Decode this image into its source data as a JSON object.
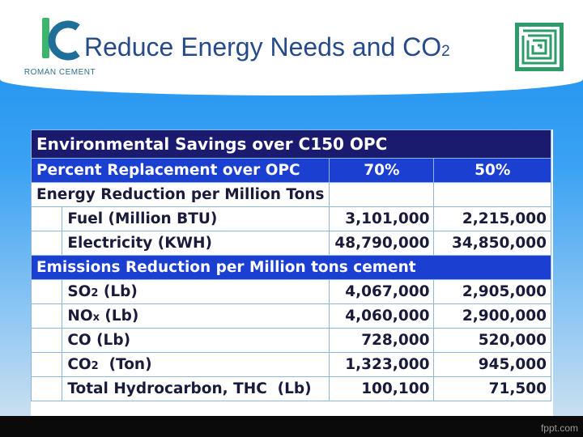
{
  "slide": {
    "title_main": "Reduce Energy Needs and CO",
    "title_sub": "2",
    "logo_text": "ROMAN CEMENT"
  },
  "table": {
    "title": "Environmental Savings over C150 OPC",
    "header": {
      "label": "Percent Replacement over OPC",
      "col1": "70%",
      "col2": "50%"
    },
    "energy_section": "Energy Reduction per Million Tons",
    "energy_rows": [
      {
        "label": "Fuel (Million BTU)",
        "v70": "3,101,000",
        "v50": "2,215,000"
      },
      {
        "label": "Electricity (KWH)",
        "v70": "48,790,000",
        "v50": "34,850,000"
      }
    ],
    "emissions_section": "Emissions Reduction per Million tons cement",
    "emission_rows": [
      {
        "label_a": "SO",
        "label_sub": "2",
        "label_b": " (Lb)",
        "v70": "4,067,000",
        "v50": "2,905,000"
      },
      {
        "label_a": "NO",
        "label_sub": "x",
        "label_b": " (Lb)",
        "v70": "4,060,000",
        "v50": "2,900,000"
      },
      {
        "label_a": "CO (Lb)",
        "label_sub": "",
        "label_b": "",
        "v70": "728,000",
        "v50": "520,000"
      },
      {
        "label_a": "CO",
        "label_sub": "2",
        "label_b": "  (Ton)",
        "v70": "1,323,000",
        "v50": "945,000"
      },
      {
        "label_a": "Total Hydrocarbon, THC  (Lb)",
        "label_sub": "",
        "label_b": "",
        "v70": "100,100",
        "v50": "71,500"
      }
    ]
  },
  "footer": {
    "text": "fppt.com"
  },
  "colors": {
    "accent_dark": "#1a1a6e",
    "accent_blue": "#1a3fd1",
    "title": "#264a8a",
    "logo_green": "#3cb46e"
  }
}
